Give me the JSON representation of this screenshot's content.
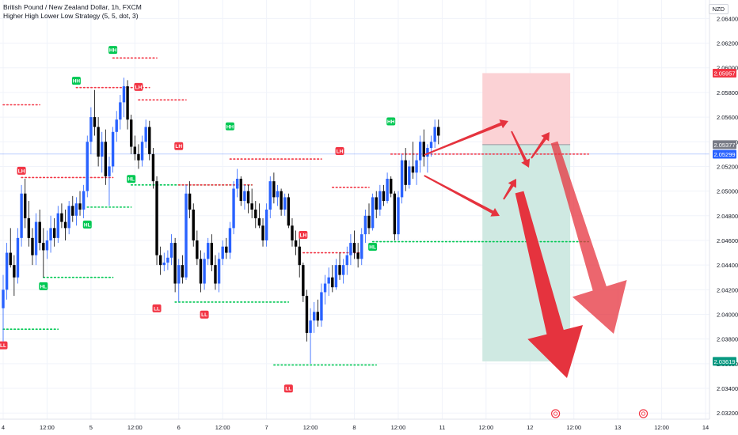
{
  "header": {
    "title": "British Pound / New Zealand Dollar, 1h, FXCM",
    "indicator": "Higher High Lower Low Strategy (5, 5, dot, 3)",
    "currency": "NZD"
  },
  "colors": {
    "up": "#2962ff",
    "down": "#000000",
    "red_marker": "#f23645",
    "green_marker": "#00c853",
    "stop_zone": "#fbd2d5",
    "target_zone": "#cfe9e2",
    "arrow": "#e5333e"
  },
  "chart_data": {
    "type": "candlestick",
    "ylim": [
      2.0315,
      2.0655
    ],
    "y_ticks": [
      "2.06400",
      "2.06200",
      "2.06000",
      "2.05800",
      "2.05600",
      "2.05400",
      "2.05200",
      "2.05000",
      "2.04800",
      "2.04600",
      "2.04400",
      "2.04200",
      "2.04000",
      "2.03800",
      "2.03600",
      "2.03400",
      "2.03200"
    ],
    "x_ticks": [
      "4",
      "12:00",
      "5",
      "12:00",
      "6",
      "12:00",
      "7",
      "12:00",
      "8",
      "12:00",
      "11",
      "12:00",
      "12",
      "12:00",
      "13",
      "12:00",
      "14"
    ],
    "x_tick_index": [
      0,
      12,
      24,
      36,
      48,
      60,
      72,
      84,
      96,
      108,
      120,
      132,
      144,
      156,
      168,
      180,
      192
    ],
    "ohlc": [
      [
        2.0405,
        2.0432,
        2.0378,
        2.042
      ],
      [
        2.042,
        2.0458,
        2.0412,
        2.045
      ],
      [
        2.045,
        2.047,
        2.0438,
        2.044
      ],
      [
        2.044,
        2.0448,
        2.0415,
        2.043
      ],
      [
        2.043,
        2.047,
        2.0425,
        2.0462
      ],
      [
        2.0462,
        2.0505,
        2.0455,
        2.0498
      ],
      [
        2.0498,
        2.051,
        2.047,
        2.0478
      ],
      [
        2.0478,
        2.0492,
        2.0455,
        2.0462
      ],
      [
        2.0462,
        2.047,
        2.044,
        2.0448
      ],
      [
        2.0448,
        2.0482,
        2.044,
        2.0475
      ],
      [
        2.0475,
        2.0485,
        2.0452,
        2.0458
      ],
      [
        2.0458,
        2.047,
        2.043,
        2.0452
      ],
      [
        2.0452,
        2.0468,
        2.0445,
        2.046
      ],
      [
        2.046,
        2.048,
        2.045,
        2.047
      ],
      [
        2.047,
        2.0478,
        2.0455,
        2.0462
      ],
      [
        2.0462,
        2.0488,
        2.0458,
        2.0482
      ],
      [
        2.0482,
        2.049,
        2.047,
        2.0475
      ],
      [
        2.0475,
        2.0485,
        2.046,
        2.047
      ],
      [
        2.047,
        2.0492,
        2.0465,
        2.0488
      ],
      [
        2.0488,
        2.0496,
        2.0475,
        2.048
      ],
      [
        2.048,
        2.0495,
        2.0472,
        2.049
      ],
      [
        2.049,
        2.05,
        2.048,
        2.0485
      ],
      [
        2.0485,
        2.0505,
        2.0478,
        2.05
      ],
      [
        2.05,
        2.0545,
        2.0495,
        2.054
      ],
      [
        2.054,
        2.0568,
        2.053,
        2.056
      ],
      [
        2.056,
        2.0582,
        2.0545,
        2.0552
      ],
      [
        2.0552,
        2.056,
        2.052,
        2.0528
      ],
      [
        2.0528,
        2.0548,
        2.0515,
        2.054
      ],
      [
        2.054,
        2.055,
        2.0505,
        2.0512
      ],
      [
        2.0512,
        2.0528,
        2.0488,
        2.052
      ],
      [
        2.052,
        2.0552,
        2.0515,
        2.0548
      ],
      [
        2.0548,
        2.0565,
        2.054,
        2.0558
      ],
      [
        2.0558,
        2.0578,
        2.055,
        2.0572
      ],
      [
        2.0572,
        2.0592,
        2.056,
        2.0585
      ],
      [
        2.0585,
        2.059,
        2.055,
        2.0558
      ],
      [
        2.0558,
        2.0562,
        2.053,
        2.0536
      ],
      [
        2.0536,
        2.0545,
        2.0525,
        2.053
      ],
      [
        2.053,
        2.0538,
        2.0518,
        2.0525
      ],
      [
        2.0525,
        2.0545,
        2.052,
        2.054
      ],
      [
        2.054,
        2.0558,
        2.0535,
        2.0552
      ],
      [
        2.0552,
        2.0557,
        2.0525,
        2.053
      ],
      [
        2.053,
        2.0535,
        2.0502,
        2.0508
      ],
      [
        2.0508,
        2.0512,
        2.044,
        2.0448
      ],
      [
        2.0448,
        2.0455,
        2.0432,
        2.044
      ],
      [
        2.044,
        2.045,
        2.0435,
        2.0442
      ],
      [
        2.0442,
        2.0452,
        2.0436,
        2.0446
      ],
      [
        2.0446,
        2.0465,
        2.044,
        2.0458
      ],
      [
        2.0458,
        2.0462,
        2.0418,
        2.0425
      ],
      [
        2.0425,
        2.0445,
        2.041,
        2.044
      ],
      [
        2.044,
        2.0448,
        2.0425,
        2.043
      ],
      [
        2.043,
        2.0505,
        2.0428,
        2.0498
      ],
      [
        2.0498,
        2.0508,
        2.0478,
        2.0485
      ],
      [
        2.0485,
        2.049,
        2.0455,
        2.046
      ],
      [
        2.046,
        2.0468,
        2.044,
        2.0445
      ],
      [
        2.0445,
        2.0452,
        2.0418,
        2.0425
      ],
      [
        2.0425,
        2.045,
        2.042,
        2.0445
      ],
      [
        2.0445,
        2.0462,
        2.044,
        2.0458
      ],
      [
        2.0458,
        2.0465,
        2.0435,
        2.044
      ],
      [
        2.044,
        2.0448,
        2.042,
        2.0425
      ],
      [
        2.0425,
        2.045,
        2.0418,
        2.0445
      ],
      [
        2.0445,
        2.046,
        2.044,
        2.0455
      ],
      [
        2.0455,
        2.0462,
        2.0445,
        2.045
      ],
      [
        2.045,
        2.0475,
        2.0445,
        2.047
      ],
      [
        2.047,
        2.0508,
        2.0465,
        2.0502
      ],
      [
        2.0502,
        2.0518,
        2.0495,
        2.051
      ],
      [
        2.051,
        2.0512,
        2.0488,
        2.0492
      ],
      [
        2.0492,
        2.0505,
        2.0485,
        2.05
      ],
      [
        2.05,
        2.0505,
        2.0482,
        2.049
      ],
      [
        2.049,
        2.0502,
        2.0478,
        2.0485
      ],
      [
        2.0485,
        2.0492,
        2.047,
        2.0478
      ],
      [
        2.0478,
        2.049,
        2.047,
        2.0472
      ],
      [
        2.0472,
        2.0478,
        2.0455,
        2.046
      ],
      [
        2.046,
        2.049,
        2.0455,
        2.0485
      ],
      [
        2.0485,
        2.0512,
        2.0478,
        2.0508
      ],
      [
        2.0508,
        2.0515,
        2.049,
        2.0495
      ],
      [
        2.0495,
        2.0505,
        2.0488,
        2.05
      ],
      [
        2.05,
        2.0502,
        2.048,
        2.0485
      ],
      [
        2.0485,
        2.0498,
        2.048,
        2.0495
      ],
      [
        2.0495,
        2.0498,
        2.047,
        2.0472
      ],
      [
        2.0472,
        2.0478,
        2.0455,
        2.046
      ],
      [
        2.046,
        2.0468,
        2.0448,
        2.0455
      ],
      [
        2.0455,
        2.0462,
        2.043,
        2.044
      ],
      [
        2.044,
        2.0442,
        2.041,
        2.0415
      ],
      [
        2.0415,
        2.042,
        2.0378,
        2.0385
      ],
      [
        2.0385,
        2.0405,
        2.036,
        2.0395
      ],
      [
        2.0395,
        2.041,
        2.0385,
        2.0402
      ],
      [
        2.0402,
        2.0412,
        2.039,
        2.0395
      ],
      [
        2.0395,
        2.0425,
        2.039,
        2.0418
      ],
      [
        2.0418,
        2.0432,
        2.0408,
        2.0425
      ],
      [
        2.0425,
        2.0438,
        2.0415,
        2.043
      ],
      [
        2.043,
        2.044,
        2.0418,
        2.0422
      ],
      [
        2.0422,
        2.0445,
        2.042,
        2.044
      ],
      [
        2.044,
        2.045,
        2.0428,
        2.0432
      ],
      [
        2.0432,
        2.0445,
        2.0425,
        2.044
      ],
      [
        2.044,
        2.0455,
        2.0432,
        2.0448
      ],
      [
        2.0448,
        2.0465,
        2.044,
        2.0458
      ],
      [
        2.0458,
        2.0468,
        2.0445,
        2.045
      ],
      [
        2.045,
        2.0458,
        2.0438,
        2.0445
      ],
      [
        2.0445,
        2.047,
        2.044,
        2.0465
      ],
      [
        2.0465,
        2.0485,
        2.0458,
        2.048
      ],
      [
        2.048,
        2.049,
        2.0465,
        2.047
      ],
      [
        2.047,
        2.0498,
        2.0468,
        2.0495
      ],
      [
        2.0495,
        2.05,
        2.0478,
        2.0485
      ],
      [
        2.0485,
        2.0505,
        2.048,
        2.05
      ],
      [
        2.05,
        2.0505,
        2.0488,
        2.0492
      ],
      [
        2.0492,
        2.0515,
        2.049,
        2.051
      ],
      [
        2.051,
        2.0512,
        2.0495,
        2.0498
      ],
      [
        2.0498,
        2.05,
        2.046,
        2.0465
      ],
      [
        2.0465,
        2.05,
        2.046,
        2.0495
      ],
      [
        2.0495,
        2.053,
        2.049,
        2.0525
      ],
      [
        2.0525,
        2.0535,
        2.05,
        2.0505
      ],
      [
        2.0505,
        2.0525,
        2.0502,
        2.052
      ],
      [
        2.052,
        2.054,
        2.051,
        2.0515
      ],
      [
        2.0515,
        2.053,
        2.0505,
        2.0525
      ],
      [
        2.0525,
        2.0545,
        2.0515,
        2.054
      ],
      [
        2.054,
        2.055,
        2.052,
        2.0528
      ],
      [
        2.0528,
        2.0538,
        2.0515,
        2.0535
      ],
      [
        2.0535,
        2.0545,
        2.0528,
        2.054
      ],
      [
        2.054,
        2.0558,
        2.0535,
        2.0552
      ],
      [
        2.0552,
        2.0558,
        2.0538,
        2.0545
      ]
    ],
    "markers": [
      {
        "label": "LL",
        "i": 0,
        "price": 2.038,
        "type": "low"
      },
      {
        "label": "LH",
        "i": 5,
        "price": 2.0512,
        "type": "high"
      },
      {
        "label": "HL",
        "i": 11,
        "price": 2.0428,
        "type": "low"
      },
      {
        "label": "HH",
        "i": 20,
        "price": 2.0585,
        "type": "high"
      },
      {
        "label": "HL",
        "i": 23,
        "price": 2.0478,
        "type": "low"
      },
      {
        "label": "HH",
        "i": 30,
        "price": 2.061,
        "type": "high"
      },
      {
        "label": "HL",
        "i": 35,
        "price": 2.0515,
        "type": "low"
      },
      {
        "label": "LH",
        "i": 37,
        "price": 2.058,
        "type": "high"
      },
      {
        "label": "LH",
        "i": 48,
        "price": 2.0532,
        "type": "high"
      },
      {
        "label": "LL",
        "i": 42,
        "price": 2.041,
        "type": "low"
      },
      {
        "label": "LL",
        "i": 55,
        "price": 2.0405,
        "type": "low"
      },
      {
        "label": "HH",
        "i": 62,
        "price": 2.0548,
        "type": "high"
      },
      {
        "label": "LH",
        "i": 82,
        "price": 2.046,
        "type": "high"
      },
      {
        "label": "LL",
        "i": 78,
        "price": 2.0345,
        "type": "low"
      },
      {
        "label": "LH",
        "i": 92,
        "price": 2.0528,
        "type": "high"
      },
      {
        "label": "HL",
        "i": 101,
        "price": 2.046,
        "type": "low"
      },
      {
        "label": "HH",
        "i": 106,
        "price": 2.0552,
        "type": "high"
      }
    ],
    "dotted_levels": [
      {
        "from": 0,
        "to": 10,
        "price": 2.057,
        "color": "red"
      },
      {
        "from": 5,
        "to": 30,
        "price": 2.0511,
        "color": "red"
      },
      {
        "from": 0,
        "to": 15,
        "price": 2.0388,
        "color": "green"
      },
      {
        "from": 11,
        "to": 30,
        "price": 2.043,
        "color": "green"
      },
      {
        "from": 20,
        "to": 40,
        "price": 2.0584,
        "color": "red"
      },
      {
        "from": 23,
        "to": 35,
        "price": 2.0487,
        "color": "green"
      },
      {
        "from": 30,
        "to": 42,
        "price": 2.0608,
        "color": "red"
      },
      {
        "from": 37,
        "to": 50,
        "price": 2.0574,
        "color": "red"
      },
      {
        "from": 35,
        "to": 68,
        "price": 2.0505,
        "color": "green"
      },
      {
        "from": 48,
        "to": 68,
        "price": 2.0505,
        "color": "red"
      },
      {
        "from": 47,
        "to": 78,
        "price": 2.041,
        "color": "green"
      },
      {
        "from": 62,
        "to": 87,
        "price": 2.0526,
        "color": "red"
      },
      {
        "from": 74,
        "to": 102,
        "price": 2.0359,
        "color": "green"
      },
      {
        "from": 82,
        "to": 98,
        "price": 2.045,
        "color": "red"
      },
      {
        "from": 90,
        "to": 100,
        "price": 2.0503,
        "color": "red"
      },
      {
        "from": 101,
        "to": 160,
        "price": 2.0459,
        "color": "green"
      },
      {
        "from": 106,
        "to": 160,
        "price": 2.053,
        "color": "red"
      }
    ],
    "current_price_line": 2.053,
    "position": {
      "entry": 2.05377,
      "stop": 2.05957,
      "target": 2.03619,
      "from": 131,
      "to": 155
    },
    "price_labels": [
      {
        "text": "2.05957",
        "color": "#f23645",
        "price": 2.05957
      },
      {
        "text": "2.05377",
        "color": "#787b86",
        "price": 2.05377
      },
      {
        "text": "2.05299",
        "color": "#2962ff",
        "price": 2.05299
      },
      {
        "text": "2.03619",
        "color": "#089981",
        "price": 2.03619
      }
    ]
  }
}
